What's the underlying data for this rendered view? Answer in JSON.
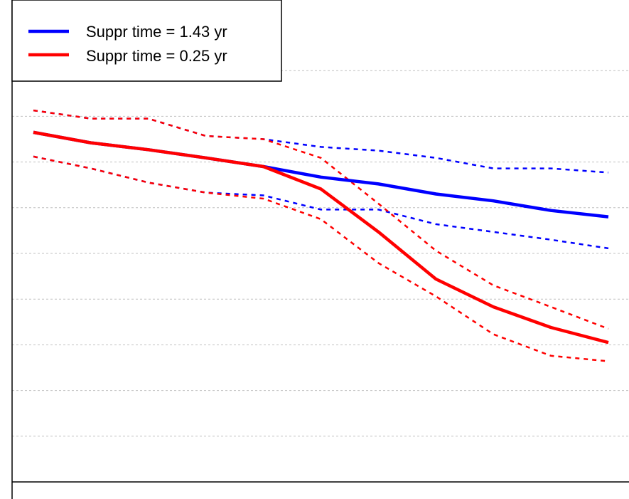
{
  "colors": {
    "background": "#ffffff",
    "axis": "#000000",
    "grid": "#c0c0c0",
    "blue": "#0000ff",
    "red": "#ff0000"
  },
  "chart_data": {
    "type": "line",
    "title": "",
    "xlabel": "",
    "ylabel": "",
    "grid": "horizontal dotted",
    "legend_position": "top-left",
    "x": [
      0,
      1,
      2,
      3,
      4,
      5,
      6,
      7,
      8,
      9,
      10
    ],
    "series": [
      {
        "name": "Suppr time = 1.43 yr",
        "color": "#0000ff",
        "style": "solid",
        "values": [
          7.65,
          7.42,
          7.27,
          7.09,
          6.9,
          6.67,
          6.52,
          6.3,
          6.15,
          5.94,
          5.8
        ]
      },
      {
        "color": "#0000ff",
        "style": "dotted",
        "values": [
          8.13,
          7.95,
          7.95,
          7.57,
          7.5,
          7.33,
          7.25,
          7.09,
          6.86,
          6.86,
          6.77
        ]
      },
      {
        "color": "#0000ff",
        "style": "dotted",
        "values": [
          7.12,
          6.86,
          6.55,
          6.33,
          6.27,
          5.96,
          5.96,
          5.64,
          5.47,
          5.3,
          5.11
        ]
      },
      {
        "name": "Suppr time = 0.25 yr",
        "color": "#ff0000",
        "style": "solid",
        "values": [
          7.65,
          7.42,
          7.27,
          7.09,
          6.9,
          6.41,
          5.47,
          4.44,
          3.83,
          3.38,
          3.05
        ]
      },
      {
        "color": "#ff0000",
        "style": "dotted",
        "values": [
          8.13,
          7.95,
          7.95,
          7.57,
          7.5,
          7.09,
          6.09,
          5.06,
          4.3,
          3.83,
          3.35
        ]
      },
      {
        "color": "#ff0000",
        "style": "dotted",
        "values": [
          7.12,
          6.86,
          6.55,
          6.33,
          6.2,
          5.75,
          4.79,
          4.06,
          3.23,
          2.76,
          2.64
        ]
      }
    ],
    "xlim": [
      0,
      10
    ],
    "ylim": [
      0,
      10
    ]
  }
}
